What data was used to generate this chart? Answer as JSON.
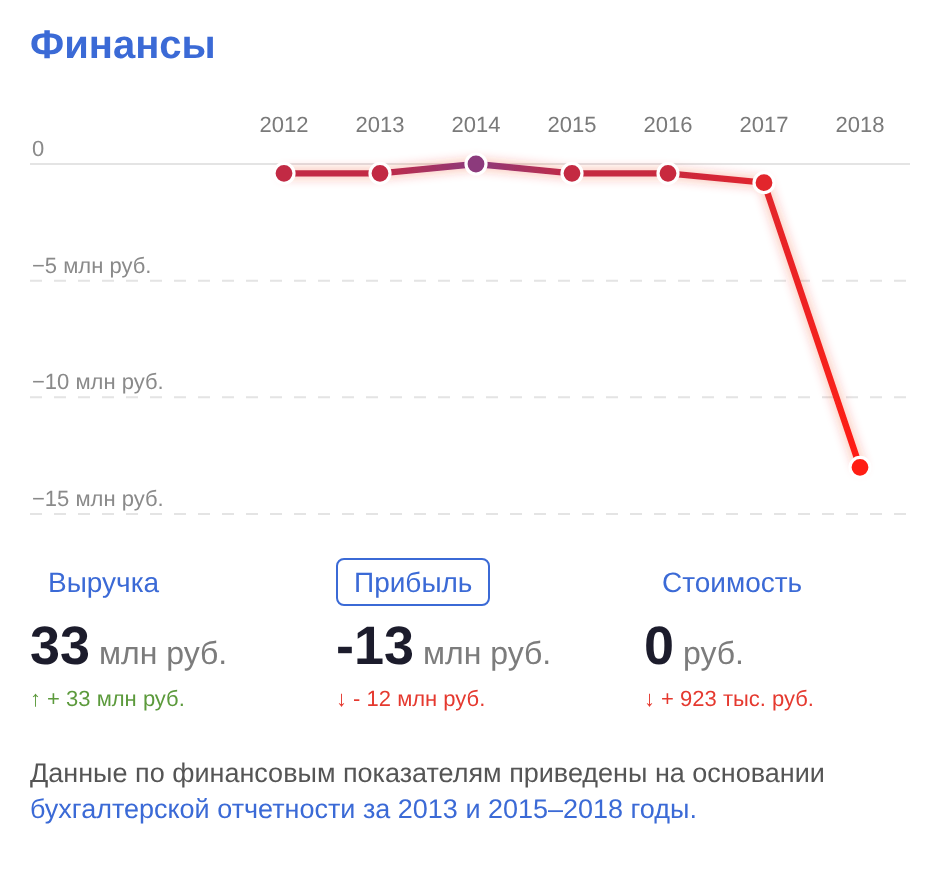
{
  "chart_data": [
    {
      "type": "line",
      "title": "Финансы",
      "categories": [
        "2012",
        "2013",
        "2014",
        "2015",
        "2016",
        "2017",
        "2018"
      ],
      "series": [
        {
          "color": "#f02a1e",
          "colors": [
            "#c22a44",
            "#c22a44",
            "#8c3a7c",
            "#c42a42",
            "#c8293e",
            "#e2262c",
            "#ff1e14"
          ],
          "values": [
            -0.4,
            -0.4,
            0,
            -0.4,
            -0.4,
            -0.8,
            -13
          ]
        }
      ],
      "ylim": [
        -15,
        0
      ],
      "yticks": [
        0,
        {
          "value": -5,
          "label": "−5 млн руб."
        },
        {
          "value": -10,
          "label": "−10 млн руб."
        },
        {
          "value": -15,
          "label": "−15 млн руб."
        }
      ],
      "grid": "y",
      "marker": "circle",
      "line_style": "solid"
    },
    {
      "type": "other",
      "annotations": [
        "Выручка",
        "Прибыль",
        "Стоимость",
        "33 млн руб.",
        "-13 млн руб.",
        "0 руб.",
        "↑ + 33 млн руб.",
        "↓ - 12 млн руб.",
        "↓ + 923 тыс. руб.",
        "Данные по финансовым показателям приведены на основании",
        "бухгалтерской отчетности за 2013 и 2015–2018 годы."
      ]
    }
  ]
}
